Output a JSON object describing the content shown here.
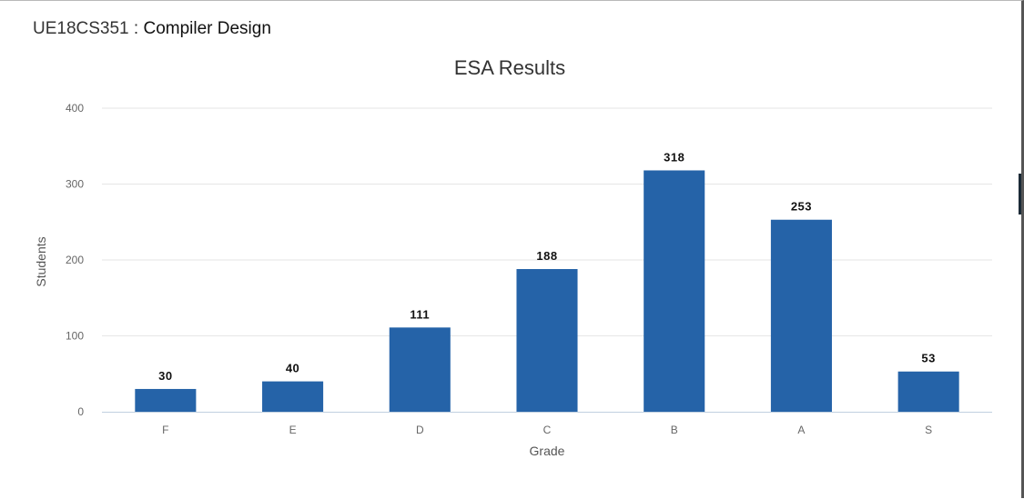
{
  "header": {
    "course_code": "UE18CS351",
    "separator": " : ",
    "course_name": "Compiler Design"
  },
  "colors": {
    "bar": "#2563a8",
    "grid": "#e6e6e6",
    "axis": "#c0d0e0"
  },
  "chart_data": {
    "type": "bar",
    "title": "ESA Results",
    "xlabel": "Grade",
    "ylabel": "Students",
    "categories": [
      "F",
      "E",
      "D",
      "C",
      "B",
      "A",
      "S"
    ],
    "values": [
      30,
      40,
      111,
      188,
      318,
      253,
      53
    ],
    "ylim": [
      0,
      400
    ],
    "yticks": [
      0,
      100,
      200,
      300,
      400
    ],
    "grid": true,
    "legend": "none"
  }
}
